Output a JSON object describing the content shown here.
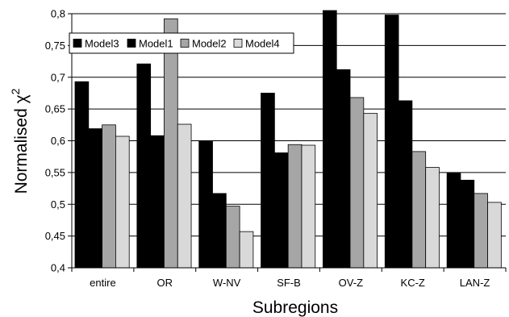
{
  "chart_data": {
    "type": "bar",
    "title": "",
    "xlabel": "Subregions",
    "ylabel": "Normalised χ",
    "ylabel_superscript": "2",
    "ylim": [
      0.4,
      0.8
    ],
    "yticks": [
      "0,4",
      "0,45",
      "0,5",
      "0,55",
      "0,6",
      "0,65",
      "0,7",
      "0,75",
      "0,8"
    ],
    "grid": "horizontal",
    "legend_position": "top-left",
    "categories": [
      "entire",
      "OR",
      "W-NV",
      "SF-B",
      "OV-Z",
      "KC-Z",
      "LAN-Z"
    ],
    "series": [
      {
        "name": "Model3",
        "color": "#000000",
        "values": [
          0.693,
          0.721,
          0.599,
          0.675,
          0.805,
          0.798,
          0.549
        ]
      },
      {
        "name": "Model1",
        "color": "#000000",
        "values": [
          0.619,
          0.608,
          0.517,
          0.581,
          0.712,
          0.663,
          0.538
        ]
      },
      {
        "name": "Model2",
        "color": "#a6a6a6",
        "values": [
          0.625,
          0.792,
          0.497,
          0.594,
          0.668,
          0.583,
          0.517
        ]
      },
      {
        "name": "Model4",
        "color": "#d9d9d9",
        "values": [
          0.607,
          0.626,
          0.457,
          0.593,
          0.643,
          0.558,
          0.503
        ]
      }
    ]
  }
}
